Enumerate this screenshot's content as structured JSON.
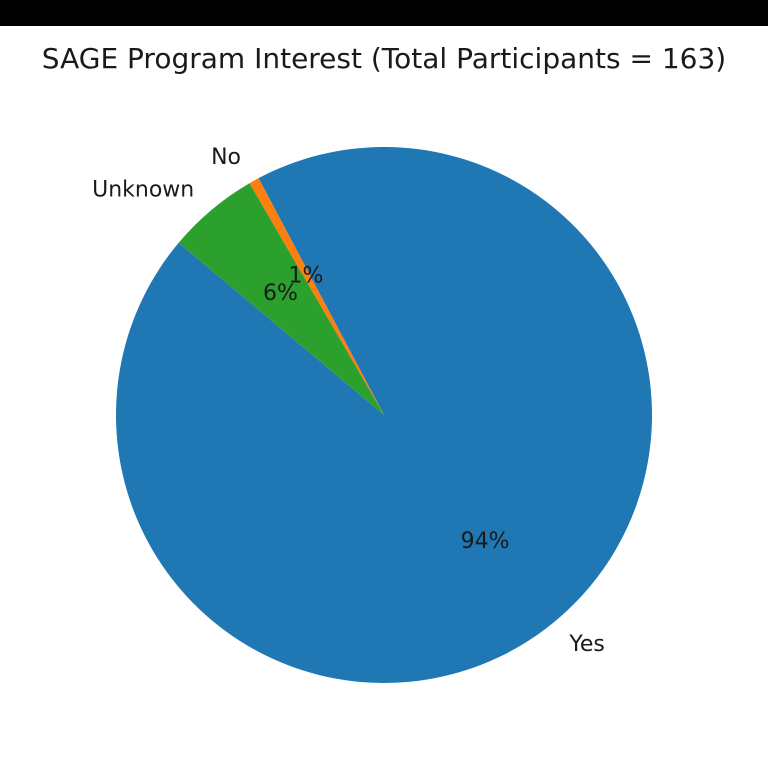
{
  "chart_data": {
    "type": "pie",
    "title": "SAGE Program Interest (Total Participants = 163)",
    "start_angle_deg": 140,
    "direction": "counterclockwise",
    "slices": [
      {
        "label": "Yes",
        "value": 153,
        "pct_label": "94%",
        "color": "#1f77b4"
      },
      {
        "label": "No",
        "value": 1,
        "pct_label": "1%",
        "color": "#ff7f0e"
      },
      {
        "label": "Unknown",
        "value": 9,
        "pct_label": "6%",
        "color": "#2ca02c"
      }
    ]
  }
}
